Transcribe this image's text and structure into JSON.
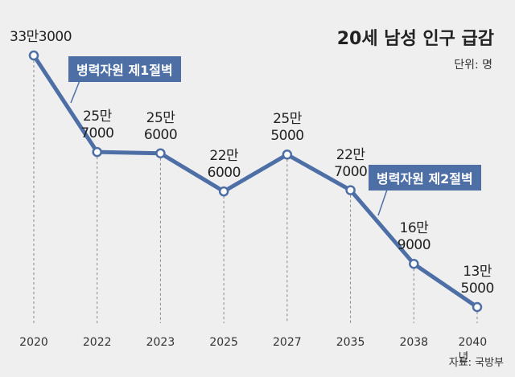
{
  "chart_data": {
    "type": "line",
    "title": "20세 남성 인구 급감",
    "subtitle": "단위: 명",
    "source": "자료: 국방부",
    "categories": [
      "2020",
      "2022",
      "2023",
      "2025",
      "2027",
      "2035",
      "2038",
      "2040년"
    ],
    "series": [
      {
        "name": "20세 남성 인구",
        "color": "#4d6fa6",
        "values": [
          333000,
          257000,
          256000,
          226000,
          255000,
          227000,
          169000,
          135000
        ],
        "value_labels": [
          "33만3000",
          "25만\n7000",
          "25만\n6000",
          "22만\n6000",
          "25만\n5000",
          "22만\n7000",
          "16만\n9000",
          "13만\n5000"
        ]
      }
    ],
    "annotations": [
      "병력자원 제1절벽",
      "병력자원 제2절벽"
    ]
  }
}
